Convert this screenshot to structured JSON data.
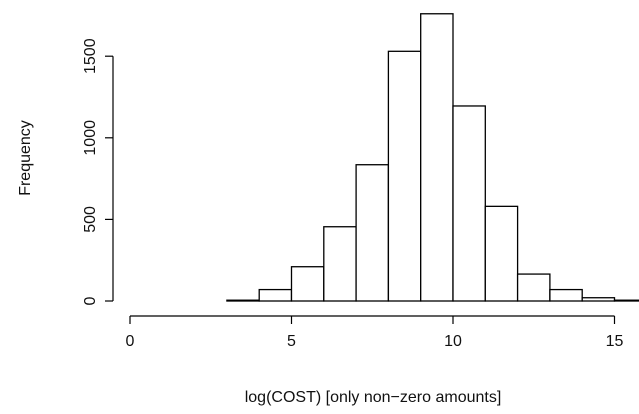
{
  "chart_data": {
    "type": "bar",
    "title": "",
    "xlabel": "log(COST) [only non−zero amounts]",
    "ylabel": "Frequency",
    "bin_width": 1,
    "bins": [
      {
        "x0": 0,
        "x1": 1,
        "count": 0
      },
      {
        "x0": 1,
        "x1": 2,
        "count": 0
      },
      {
        "x0": 2,
        "x1": 3,
        "count": 0
      },
      {
        "x0": 3,
        "x1": 4,
        "count": 5
      },
      {
        "x0": 4,
        "x1": 5,
        "count": 70
      },
      {
        "x0": 5,
        "x1": 6,
        "count": 210
      },
      {
        "x0": 6,
        "x1": 7,
        "count": 455
      },
      {
        "x0": 7,
        "x1": 8,
        "count": 835
      },
      {
        "x0": 8,
        "x1": 9,
        "count": 1530
      },
      {
        "x0": 9,
        "x1": 10,
        "count": 1760
      },
      {
        "x0": 10,
        "x1": 11,
        "count": 1195
      },
      {
        "x0": 11,
        "x1": 12,
        "count": 580
      },
      {
        "x0": 12,
        "x1": 13,
        "count": 165
      },
      {
        "x0": 13,
        "x1": 14,
        "count": 70
      },
      {
        "x0": 14,
        "x1": 15,
        "count": 20
      },
      {
        "x0": 15,
        "x1": 16,
        "count": 5
      }
    ],
    "xlim": [
      0,
      16
    ],
    "ylim": [
      0,
      1800
    ],
    "x_ticks": [
      0,
      5,
      10,
      15
    ],
    "x_tick_labels": [
      "0",
      "5",
      "10",
      "15"
    ],
    "y_ticks": [
      0,
      500,
      1000,
      1500
    ],
    "y_tick_labels": [
      "0",
      "500",
      "1000",
      "1500"
    ],
    "grid": false,
    "colors": {
      "bar_fill": "#ffffff",
      "bar_stroke": "#000000"
    }
  }
}
